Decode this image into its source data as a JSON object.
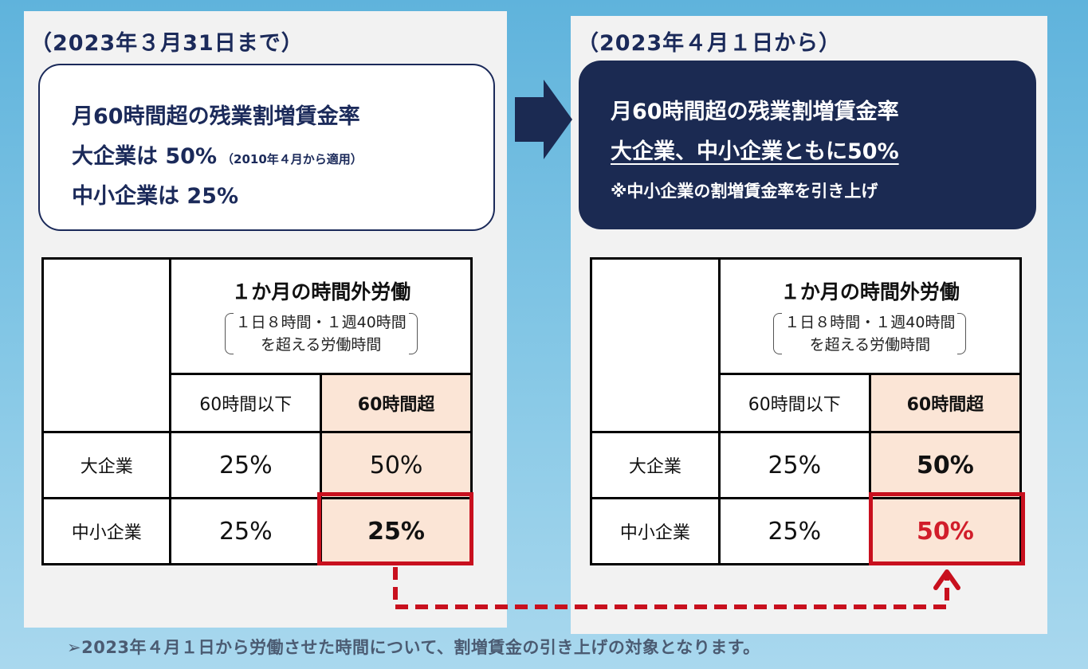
{
  "left": {
    "period": "（2023年３月31日まで）",
    "summary": {
      "line1": "月60時間超の残業割増賃金率",
      "line2": "大企業は 50%",
      "line2_note": "（2010年４月から適用）",
      "line3": "中小企業は 25%"
    },
    "table": {
      "header_main": "１か月の時間外労働",
      "header_note_1": "１日８時間・１週40時間",
      "header_note_2": "を超える労働時間",
      "col_under": "60時間以下",
      "col_over": "60時間超",
      "rows": [
        {
          "label": "大企業",
          "under": "25%",
          "over": "50%"
        },
        {
          "label": "中小企業",
          "under": "25%",
          "over": "25%"
        }
      ]
    }
  },
  "right": {
    "period": "（2023年４月１日から）",
    "summary": {
      "line1": "月60時間超の残業割増賃金率",
      "line2": "大企業、中小企業ともに50%",
      "line3": "※中小企業の割増賃金率を引き上げ"
    },
    "table": {
      "header_main": "１か月の時間外労働",
      "header_note_1": "１日８時間・１週40時間",
      "header_note_2": "を超える労働時間",
      "col_under": "60時間以下",
      "col_over": "60時間超",
      "rows": [
        {
          "label": "大企業",
          "under": "25%",
          "over": "50%"
        },
        {
          "label": "中小企業",
          "under": "25%",
          "over": "50%"
        }
      ]
    }
  },
  "footer": "➢2023年４月１日から労働させた時間について、割増賃金の引き上げの対象となります。",
  "colors": {
    "navy": "#1b2a52",
    "highlight_red": "#c8101e",
    "peach": "#fbe5d6"
  }
}
